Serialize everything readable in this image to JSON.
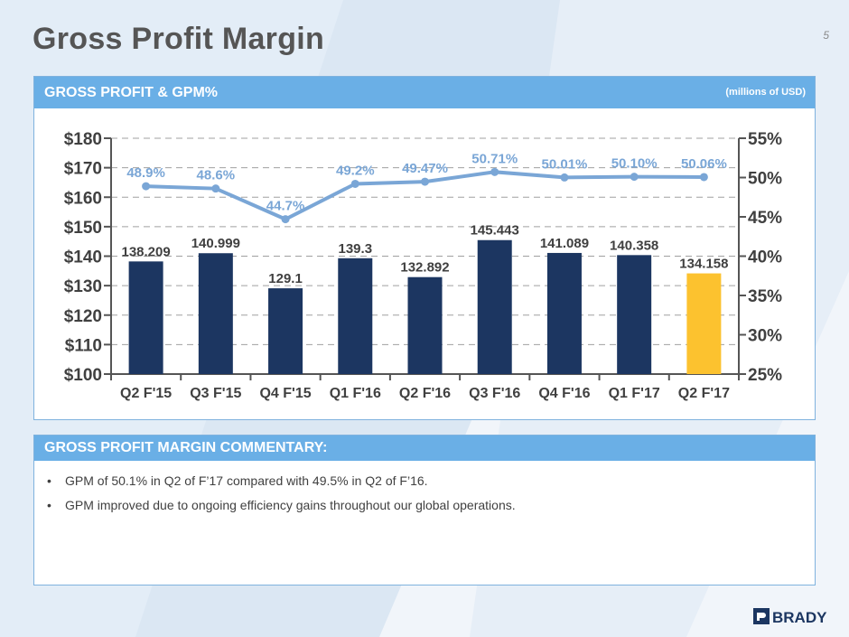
{
  "title": "Gross Profit Margin",
  "slide_number": "5",
  "chart_panel": {
    "header": "GROSS PROFIT & GPM%",
    "unit": "(millions of USD)"
  },
  "chart_data": {
    "type": "bar",
    "categories": [
      "Q2 F'15",
      "Q3 F'15",
      "Q4 F'15",
      "Q1 F'16",
      "Q2 F'16",
      "Q3 F'16",
      "Q4 F'16",
      "Q1 F'17",
      "Q2 F'17"
    ],
    "series": [
      {
        "name": "Gross Profit",
        "axis": "left",
        "type": "bar",
        "values": [
          138.209,
          140.999,
          129.1,
          139.3,
          132.892,
          145.443,
          141.089,
          140.358,
          134.158
        ],
        "labels": [
          "138.209",
          "140.999",
          "129.1",
          "139.3",
          "132.892",
          "145.443",
          "141.089",
          "140.358",
          "134.158"
        ]
      },
      {
        "name": "GPM%",
        "axis": "right",
        "type": "line",
        "values": [
          48.9,
          48.6,
          44.7,
          49.2,
          49.47,
          50.71,
          50.01,
          50.1,
          50.06
        ],
        "labels": [
          "48.9%",
          "48.6%",
          "44.7%",
          "49.2%",
          "49.47%",
          "50.71%",
          "50.01%",
          "50.10%",
          "50.06%"
        ]
      }
    ],
    "left_axis": {
      "min": 100,
      "max": 180,
      "ticks": [
        "$100",
        "$110",
        "$120",
        "$130",
        "$140",
        "$150",
        "$160",
        "$170",
        "$180"
      ]
    },
    "right_axis": {
      "min": 25,
      "max": 55,
      "ticks": [
        "25%",
        "30%",
        "35%",
        "40%",
        "45%",
        "50%",
        "55%"
      ]
    },
    "grid": true,
    "colors": {
      "bar": "#1c3661",
      "highlight_bar": "#fcc22f",
      "line": "#7aa6d6"
    }
  },
  "commentary": {
    "header": "GROSS PROFIT MARGIN COMMENTARY:",
    "bullets": [
      "GPM of 50.1% in Q2 of F’17 compared with 49.5% in Q2 of F’16.",
      "GPM improved due to ongoing efficiency gains throughout our global operations."
    ]
  },
  "logo": {
    "text": "BRADY"
  }
}
